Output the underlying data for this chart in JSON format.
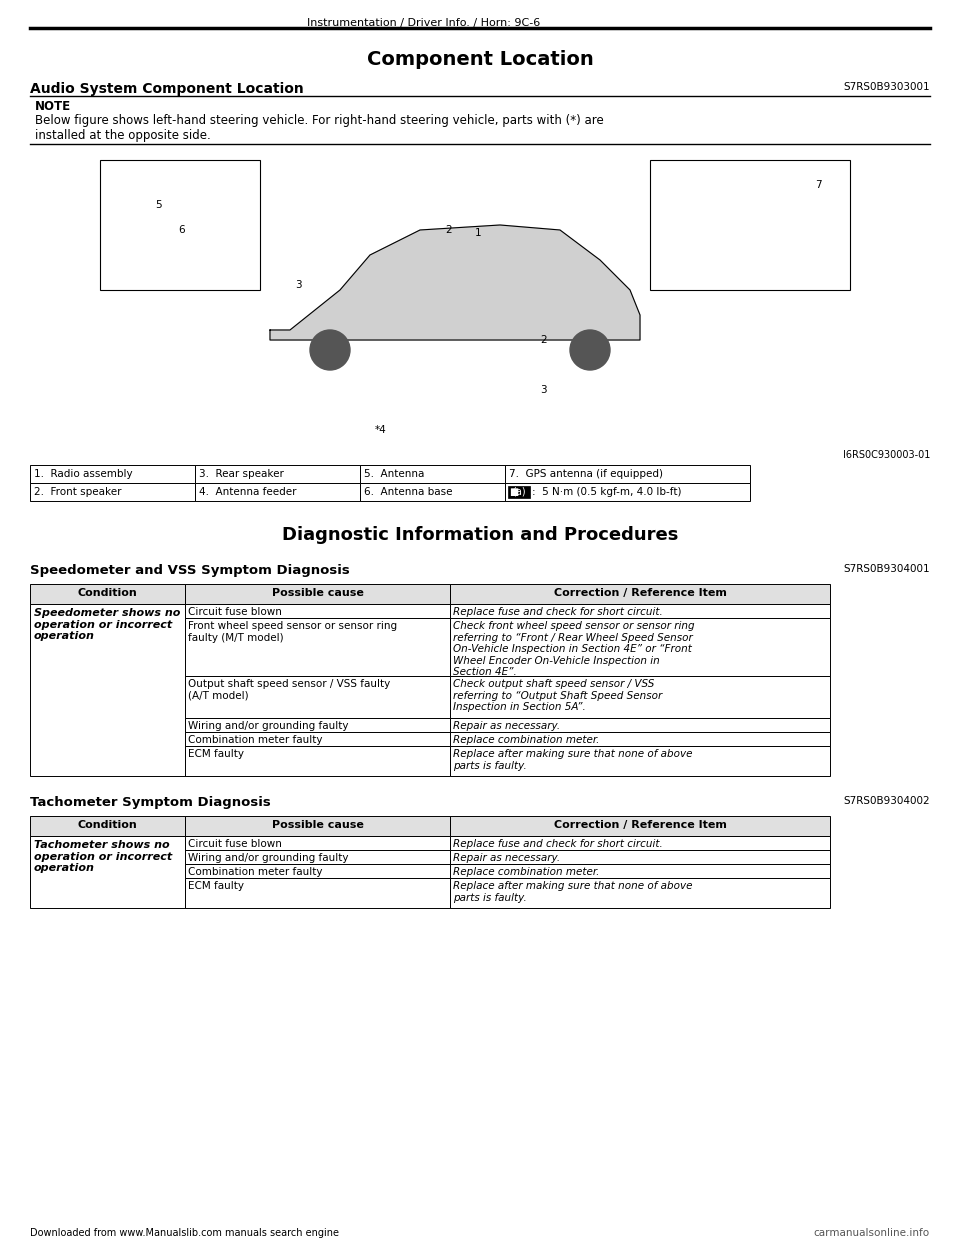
{
  "header_text": "Instrumentation / Driver Info. / Horn: 9C-6",
  "title": "Component Location",
  "section1_title": "Audio System Component Location",
  "section1_code": "S7RS0B9303001",
  "note_label": "NOTE",
  "note_text": "Below figure shows left-hand steering vehicle. For right-hand steering vehicle, parts with (*) are\ninstalled at the opposite side.",
  "image_code": "I6RS0C930003-01",
  "parts_table": [
    [
      "1.  Radio assembly",
      "3.  Rear speaker",
      "5.  Antenna",
      "7.  GPS antenna (if equipped)"
    ],
    [
      "2.  Front speaker",
      "4.  Antenna feeder",
      "6.  Antenna base",
      "■■ :  5 N·m (0.5 kgf-m, 4.0 lb-ft)"
    ]
  ],
  "section2_title": "Diagnostic Information and Procedures",
  "section2_sub1": "Speedometer and VSS Symptom Diagnosis",
  "section2_sub1_code": "S7RS0B9304001",
  "speedometer_table_headers": [
    "Condition",
    "Possible cause",
    "Correction / Reference Item"
  ],
  "speedometer_rows": [
    {
      "condition": "Speedometer shows no\noperation or incorrect\noperation",
      "possible_causes": [
        "Circuit fuse blown",
        "Front wheel speed sensor or sensor ring\nfaulty (M/T model)",
        "Output shaft speed sensor / VSS faulty\n(A/T model)",
        "Wiring and/or grounding faulty",
        "Combination meter faulty",
        "ECM faulty"
      ],
      "corrections": [
        "Replace fuse and check for short circuit.",
        "Check front wheel speed sensor or sensor ring\nreferring to “Front / Rear Wheel Speed Sensor\nOn-Vehicle Inspection in Section 4E” or “Front\nWheel Encoder On-Vehicle Inspection in\nSection 4E”.",
        "Check output shaft speed sensor / VSS\nreferring to “Output Shaft Speed Sensor\nInspection in Section 5A”.",
        "Repair as necessary.",
        "Replace combination meter.",
        "Replace after making sure that none of above\nparts is faulty."
      ]
    }
  ],
  "section2_sub2": "Tachometer Symptom Diagnosis",
  "section2_sub2_code": "S7RS0B9304002",
  "tachometer_table_headers": [
    "Condition",
    "Possible cause",
    "Correction / Reference Item"
  ],
  "tachometer_rows": [
    {
      "condition": "Tachometer shows no\noperation or incorrect\noperation",
      "possible_causes": [
        "Circuit fuse blown",
        "Wiring and/or grounding faulty",
        "Combination meter faulty",
        "ECM faulty"
      ],
      "corrections": [
        "Replace fuse and check for short circuit.",
        "Repair as necessary.",
        "Replace combination meter.",
        "Replace after making sure that none of above\nparts is faulty."
      ]
    }
  ],
  "footer_left": "Downloaded from www.Manualslib.com manuals search engine",
  "footer_right": "carmanualsonline.info",
  "bg_color": "#ffffff",
  "text_color": "#000000",
  "table_border_color": "#000000"
}
